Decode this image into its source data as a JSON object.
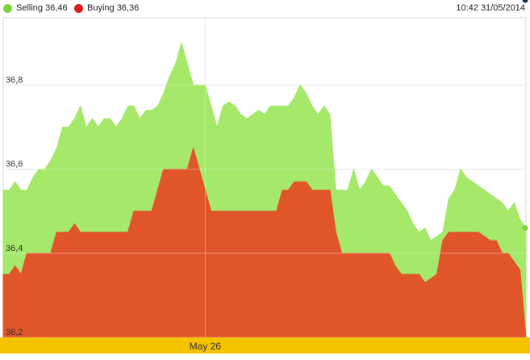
{
  "header": {
    "timestamp": "10:42 31/05/2014"
  },
  "chart_data": {
    "type": "area",
    "title": "",
    "xlabel": "",
    "ylabel": "",
    "ylim": [
      36.2,
      36.96
    ],
    "yticks": [
      {
        "value": 36.2,
        "label": "36,2"
      },
      {
        "value": 36.4,
        "label": "36,4"
      },
      {
        "value": 36.6,
        "label": "36,6"
      },
      {
        "value": 36.8,
        "label": "36,8"
      }
    ],
    "xticks": [
      {
        "index": 34,
        "label": "May 26"
      }
    ],
    "grid": true,
    "legend_position": "top-left",
    "background_color": "#ffffff",
    "axis_band_color": "#f5c300",
    "marker_color": "#1a2a4a",
    "series": [
      {
        "name": "Selling",
        "legend_label": "Selling 36,46",
        "color": "#8ee04f",
        "fill": "#a5e86a",
        "values": [
          36.55,
          36.55,
          36.57,
          36.55,
          36.55,
          36.58,
          36.6,
          36.6,
          36.62,
          36.65,
          36.7,
          36.7,
          36.72,
          36.75,
          36.7,
          36.72,
          36.7,
          36.72,
          36.72,
          36.7,
          36.72,
          36.75,
          36.75,
          36.72,
          36.74,
          36.74,
          36.75,
          36.78,
          36.82,
          36.85,
          36.9,
          36.85,
          36.8,
          36.8,
          36.8,
          36.75,
          36.7,
          36.75,
          36.76,
          36.75,
          36.73,
          36.72,
          36.73,
          36.74,
          36.73,
          36.75,
          36.75,
          36.75,
          36.75,
          36.77,
          36.8,
          36.78,
          36.75,
          36.73,
          36.75,
          36.73,
          36.55,
          36.55,
          36.55,
          36.6,
          36.55,
          36.57,
          36.6,
          36.58,
          36.56,
          36.56,
          36.54,
          36.52,
          36.5,
          36.47,
          36.45,
          36.46,
          36.43,
          36.44,
          36.45,
          36.53,
          36.55,
          36.6,
          36.58,
          36.57,
          36.56,
          36.55,
          36.54,
          36.53,
          36.52,
          36.5,
          36.52,
          36.48,
          36.46
        ]
      },
      {
        "name": "Buying",
        "legend_label": "Buying 36,36",
        "color": "#e02020",
        "fill": "#e0552a",
        "values": [
          36.35,
          36.35,
          36.37,
          36.35,
          36.4,
          36.4,
          36.4,
          36.4,
          36.4,
          36.45,
          36.45,
          36.45,
          36.47,
          36.45,
          36.45,
          36.45,
          36.45,
          36.45,
          36.45,
          36.45,
          36.45,
          36.45,
          36.5,
          36.5,
          36.5,
          36.5,
          36.55,
          36.6,
          36.6,
          36.6,
          36.6,
          36.6,
          36.65,
          36.6,
          36.55,
          36.5,
          36.5,
          36.5,
          36.5,
          36.5,
          36.5,
          36.5,
          36.5,
          36.5,
          36.5,
          36.5,
          36.5,
          36.55,
          36.55,
          36.57,
          36.57,
          36.57,
          36.55,
          36.55,
          36.55,
          36.55,
          36.45,
          36.4,
          36.4,
          36.4,
          36.4,
          36.4,
          36.4,
          36.4,
          36.4,
          36.4,
          36.37,
          36.35,
          36.35,
          36.35,
          36.35,
          36.33,
          36.34,
          36.35,
          36.43,
          36.45,
          36.45,
          36.45,
          36.45,
          36.45,
          36.45,
          36.44,
          36.43,
          36.43,
          36.4,
          36.4,
          36.38,
          36.36
        ]
      }
    ]
  }
}
